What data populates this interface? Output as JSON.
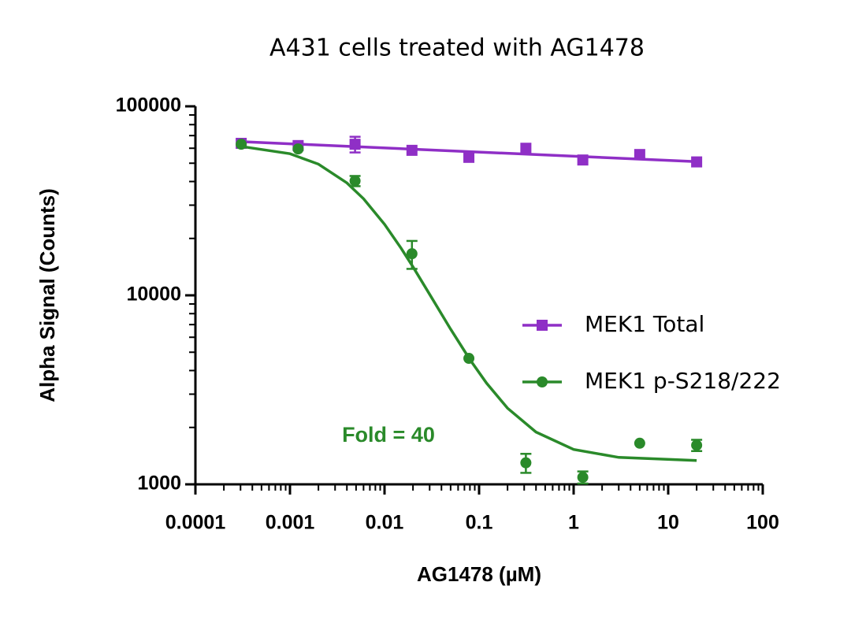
{
  "chart_data": {
    "type": "scatter",
    "title": "A431 cells treated with AG1478",
    "x_label": "AG1478 (µM)",
    "y_label": "Alpha Signal (Counts)",
    "x_scale": "log",
    "y_scale": "log",
    "xlim": [
      0.0001,
      100
    ],
    "xticks": [
      0.0001,
      0.001,
      0.01,
      0.1,
      1,
      10,
      100
    ],
    "ylim": [
      1000,
      100000
    ],
    "yticks": [
      1000,
      10000,
      100000
    ],
    "x": [
      0.000305,
      0.00122,
      0.00488,
      0.0195,
      0.078,
      0.3125,
      1.25,
      5,
      20
    ],
    "legend": "right",
    "annotation": {
      "text": "Fold = 40",
      "x": 0.011,
      "y": 1800,
      "color": "#2a8a2a"
    },
    "series": [
      {
        "name": "MEK1 Total",
        "color": "#8f2fc6",
        "marker": "square",
        "values": [
          63700,
          62000,
          63000,
          58500,
          53700,
          60000,
          52000,
          55600,
          50800
        ],
        "errors": [
          null,
          null,
          6000,
          null,
          null,
          null,
          null,
          null,
          null
        ],
        "fit_x": [
          0.000305,
          20
        ],
        "fit_values": [
          65000,
          51000
        ]
      },
      {
        "name": "MEK1 p-S218/222",
        "color": "#2a8a2a",
        "marker": "circle",
        "values": [
          63000,
          59500,
          40300,
          16600,
          4640,
          1300,
          1090,
          1650,
          1610
        ],
        "errors": [
          null,
          null,
          2500,
          2800,
          null,
          150,
          80,
          null,
          110
        ],
        "fit_x": [
          0.0003,
          0.001,
          0.002,
          0.004,
          0.006,
          0.01,
          0.015,
          0.02,
          0.03,
          0.05,
          0.08,
          0.12,
          0.2,
          0.4,
          1,
          3,
          20
        ],
        "fit_values": [
          61400,
          56150,
          49450,
          39350,
          32415,
          23760,
          17730,
          14150,
          10120,
          6620,
          4570,
          3430,
          2530,
          1890,
          1530,
          1389,
          1337
        ]
      }
    ]
  }
}
